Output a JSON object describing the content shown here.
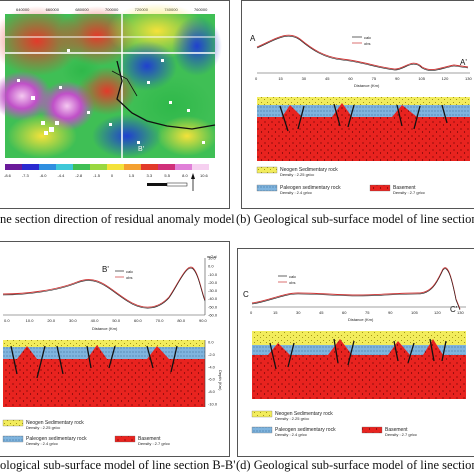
{
  "captions": {
    "a": "ne section direction of residual anomaly model",
    "b": "(b) Geological sub-surface model of line section",
    "c": "ological sub-surface model of line section B-B'",
    "d": "(d) Geological sub-surface model of line section"
  },
  "panel_a": {
    "x_ticks": [
      "640000",
      "660000",
      "680000",
      "700000",
      "720000",
      "740000",
      "760000"
    ],
    "colorbar_ticks": [
      "-8.6",
      "-7.3",
      "-6.0",
      "-4.4",
      "-2.8",
      "-1.5",
      "0",
      "1.5",
      "3.3",
      "5.5",
      "8.0",
      "10.6"
    ],
    "label_B": "B'"
  },
  "panel_b": {
    "end_left": "A",
    "end_right": "A'",
    "legend": [
      "calc",
      "obs"
    ],
    "x_ticks": [
      "0",
      "15",
      "30",
      "45",
      "60",
      "75",
      "90",
      "105",
      "120",
      "130"
    ],
    "xlabel": "Distance (Km)",
    "legend_units": [
      {
        "name": "Neogen Sedimentary rock",
        "density": "Density : 2.25 gr/cc"
      },
      {
        "name": "Paleogen sedimentary rock",
        "density": "Density : 2.4 gr/cc"
      },
      {
        "name": "Basement",
        "density": "Density : 2.7 gr/cc"
      }
    ]
  },
  "panel_c": {
    "end_right": "B'",
    "unit": "mGal",
    "legend": [
      "calc",
      "obs"
    ],
    "y_ticks": [
      "10.0",
      "0.0",
      "-10.0",
      "-20.0",
      "-30.0",
      "-40.0",
      "-50.0",
      "-60.0"
    ],
    "x_ticks": [
      "0.0",
      "10.0",
      "20.0",
      "30.0",
      "40.0",
      "50.0",
      "60.0",
      "70.0",
      "80.0",
      "90.0"
    ],
    "xlabel": "Distance (Km)",
    "depth_ticks": [
      "0.0",
      "-2.0",
      "-4.0",
      "-6.0",
      "-8.0",
      "-10.0"
    ],
    "depth_label": "Depth (Km)",
    "legend_units": [
      {
        "name": "Neogen Sedimentary rock",
        "density": "Density : 2.25 gr/cc"
      },
      {
        "name": "Paleogen sedimentary rock",
        "density": "Density : 2.4 gr/cc"
      },
      {
        "name": "Basement",
        "density": "Density : 2.7 gr/cc"
      }
    ]
  },
  "panel_d": {
    "end_left": "C",
    "end_right": "C'",
    "legend": [
      "calc",
      "obs"
    ],
    "x_ticks": [
      "0",
      "15",
      "30",
      "45",
      "60",
      "75",
      "90",
      "105",
      "120",
      "130"
    ],
    "xlabel": "Distance (Km)",
    "legend_units": [
      {
        "name": "Neogen Sedimentary rock",
        "density": "Density : 2.25 gr/cc"
      },
      {
        "name": "Paleogen sedimentary rock",
        "density": "Density : 2.4 gr/cc"
      },
      {
        "name": "Basement",
        "density": "Density : 2.7 gr/cc"
      }
    ]
  }
}
